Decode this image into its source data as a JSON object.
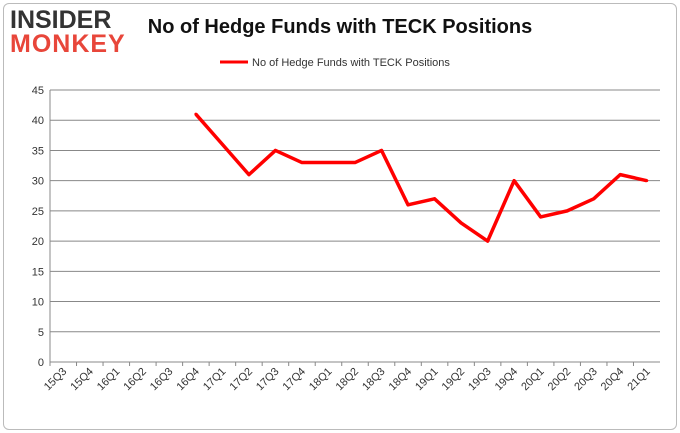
{
  "logo": {
    "line1": "INSIDER",
    "line2": "MONKEY"
  },
  "chart_data": {
    "type": "line",
    "title": "No of Hedge Funds with TECK Positions",
    "xlabel": "",
    "ylabel": "",
    "categories": [
      "15Q3",
      "15Q4",
      "16Q1",
      "16Q2",
      "16Q3",
      "16Q4",
      "17Q1",
      "17Q2",
      "17Q3",
      "17Q4",
      "18Q1",
      "18Q2",
      "18Q3",
      "18Q4",
      "19Q1",
      "19Q2",
      "19Q3",
      "19Q4",
      "20Q1",
      "20Q2",
      "20Q3",
      "20Q4",
      "21Q1"
    ],
    "series": [
      {
        "name": "No of Hedge Funds with TECK Positions",
        "color": "#ff0000",
        "values": [
          null,
          null,
          null,
          null,
          null,
          41,
          36,
          31,
          35,
          33,
          33,
          33,
          35,
          26,
          27,
          23,
          20,
          30,
          24,
          25,
          27,
          31,
          30
        ]
      }
    ],
    "ylim": [
      0,
      45
    ],
    "yticks": [
      0,
      5,
      10,
      15,
      20,
      25,
      30,
      35,
      40,
      45
    ],
    "grid": true,
    "legend_position": "top-center"
  }
}
